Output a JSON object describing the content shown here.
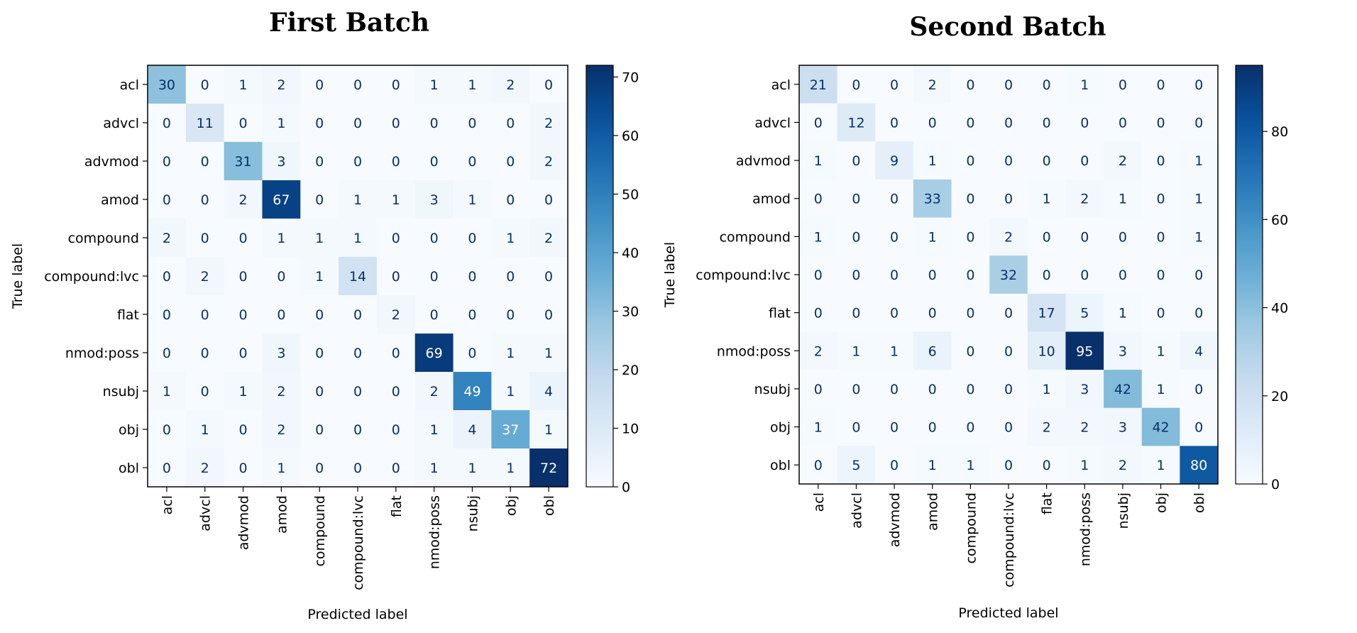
{
  "chart_data": [
    {
      "type": "heatmap",
      "title": "First Batch",
      "xlabel": "Predicted label",
      "ylabel": "True label",
      "labels": [
        "acl",
        "advcl",
        "advmod",
        "amod",
        "compound",
        "compound:lvc",
        "flat",
        "nmod:poss",
        "nsubj",
        "obj",
        "obl"
      ],
      "matrix": [
        [
          30,
          0,
          1,
          2,
          0,
          0,
          0,
          1,
          1,
          2,
          0
        ],
        [
          0,
          11,
          0,
          1,
          0,
          0,
          0,
          0,
          0,
          0,
          2
        ],
        [
          0,
          0,
          31,
          3,
          0,
          0,
          0,
          0,
          0,
          0,
          2
        ],
        [
          0,
          0,
          2,
          67,
          0,
          1,
          1,
          3,
          1,
          0,
          0
        ],
        [
          2,
          0,
          0,
          1,
          1,
          1,
          0,
          0,
          0,
          1,
          2
        ],
        [
          0,
          2,
          0,
          0,
          1,
          14,
          0,
          0,
          0,
          0,
          0
        ],
        [
          0,
          0,
          0,
          0,
          0,
          0,
          2,
          0,
          0,
          0,
          0
        ],
        [
          0,
          0,
          0,
          3,
          0,
          0,
          0,
          69,
          0,
          1,
          1
        ],
        [
          1,
          0,
          1,
          2,
          0,
          0,
          0,
          2,
          49,
          1,
          4
        ],
        [
          0,
          1,
          0,
          2,
          0,
          0,
          0,
          1,
          4,
          37,
          1
        ],
        [
          0,
          2,
          0,
          1,
          0,
          0,
          0,
          1,
          1,
          1,
          72
        ]
      ],
      "colormap": "Blues",
      "vmin": 0,
      "vmax": 72,
      "colorbar_ticks": [
        0,
        10,
        20,
        30,
        40,
        50,
        60,
        70
      ]
    },
    {
      "type": "heatmap",
      "title": "Second Batch",
      "xlabel": "Predicted label",
      "ylabel": "True label",
      "labels": [
        "acl",
        "advcl",
        "advmod",
        "amod",
        "compound",
        "compound:lvc",
        "flat",
        "nmod:poss",
        "nsubj",
        "obj",
        "obl"
      ],
      "matrix": [
        [
          21,
          0,
          0,
          2,
          0,
          0,
          0,
          1,
          0,
          0,
          0
        ],
        [
          0,
          12,
          0,
          0,
          0,
          0,
          0,
          0,
          0,
          0,
          0
        ],
        [
          1,
          0,
          9,
          1,
          0,
          0,
          0,
          0,
          2,
          0,
          1
        ],
        [
          0,
          0,
          0,
          33,
          0,
          0,
          1,
          2,
          1,
          0,
          1
        ],
        [
          1,
          0,
          0,
          1,
          0,
          2,
          0,
          0,
          0,
          0,
          1
        ],
        [
          0,
          0,
          0,
          0,
          0,
          32,
          0,
          0,
          0,
          0,
          0
        ],
        [
          0,
          0,
          0,
          0,
          0,
          0,
          17,
          5,
          1,
          0,
          0
        ],
        [
          2,
          1,
          1,
          6,
          0,
          0,
          10,
          95,
          3,
          1,
          4
        ],
        [
          0,
          0,
          0,
          0,
          0,
          0,
          1,
          3,
          42,
          1,
          0
        ],
        [
          1,
          0,
          0,
          0,
          0,
          0,
          2,
          2,
          3,
          42,
          0
        ],
        [
          0,
          5,
          0,
          1,
          1,
          0,
          0,
          1,
          2,
          1,
          80
        ]
      ],
      "colormap": "Blues",
      "vmin": 0,
      "vmax": 95,
      "colorbar_ticks": [
        0,
        20,
        40,
        60,
        80
      ]
    }
  ]
}
